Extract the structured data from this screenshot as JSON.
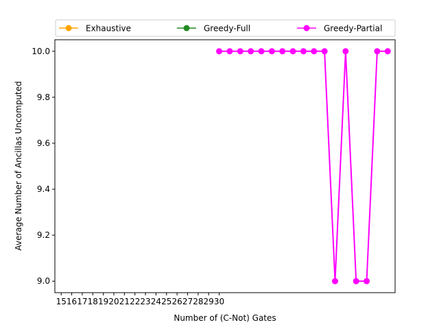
{
  "chart_data": {
    "type": "line",
    "title": "",
    "xlabel": "Number of (C-Not) Gates",
    "ylabel": "Average Number of Ancillas Uncomputed",
    "x_tick_labels": [
      "15",
      "16",
      "17",
      "18",
      "19",
      "20",
      "21",
      "22",
      "23",
      "24",
      "25",
      "26",
      "27",
      "28",
      "29",
      "30"
    ],
    "y_ticks": [
      "9.0",
      "9.2",
      "9.4",
      "9.6",
      "9.8",
      "10.0"
    ],
    "ylim": [
      8.95,
      10.05
    ],
    "legend_position": "top",
    "series": [
      {
        "name": "Exhaustive",
        "color": "#FFA500",
        "x": [],
        "y": []
      },
      {
        "name": "Greedy-Full",
        "color": "#228B22",
        "x": [],
        "y": []
      },
      {
        "name": "Greedy-Partial",
        "color": "#FF00FF",
        "x": [
          30,
          31,
          32,
          33,
          34,
          35,
          36,
          37,
          38,
          39,
          40,
          41,
          42,
          43,
          44,
          45,
          46
        ],
        "y": [
          10.0,
          10.0,
          10.0,
          10.0,
          10.0,
          10.0,
          10.0,
          10.0,
          10.0,
          10.0,
          10.0,
          9.0,
          10.0,
          9.0,
          9.0,
          10.0,
          10.0
        ]
      }
    ]
  }
}
